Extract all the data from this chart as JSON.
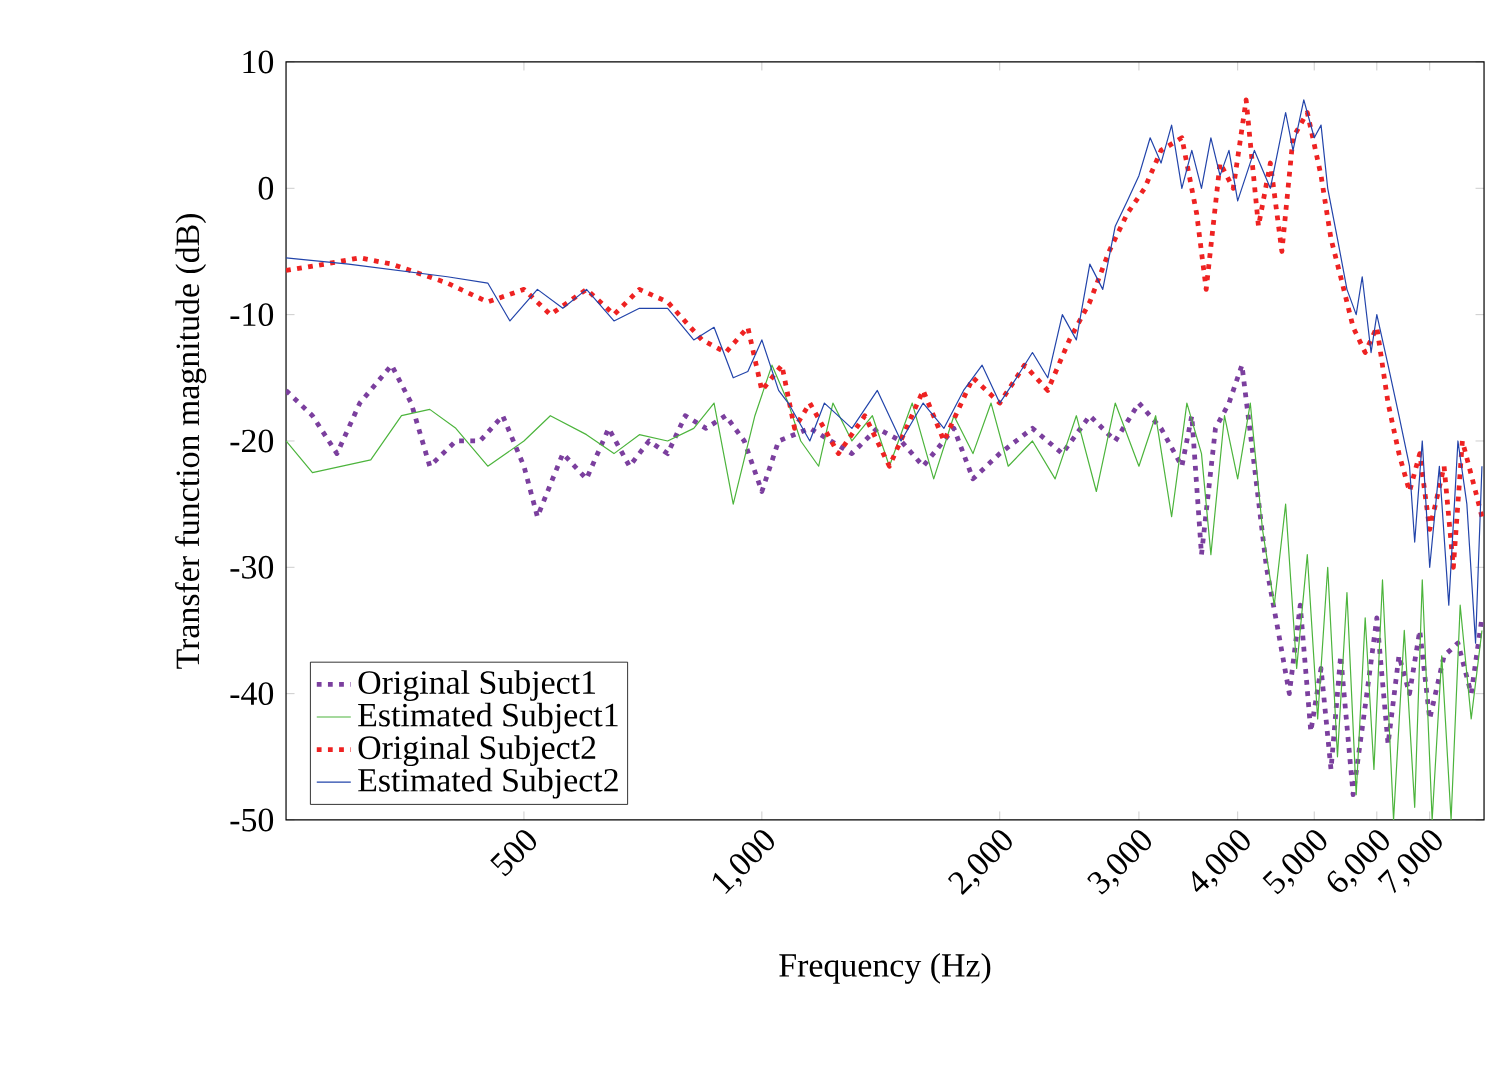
{
  "chart_data": {
    "type": "line",
    "xlabel": "Frequency (Hz)",
    "ylabel": "Transfer function magnitude (dB)",
    "log": "x",
    "xlim": [
      250,
      8200
    ],
    "ylim": [
      -50,
      10
    ],
    "xticks": [
      500,
      {
        "value": 1000,
        "label": "1,000"
      },
      {
        "value": 2000,
        "label": "2,000"
      },
      {
        "value": 3000,
        "label": "3,000"
      },
      {
        "value": 4000,
        "label": "4,000"
      },
      {
        "value": 5000,
        "label": "5,000"
      },
      {
        "value": 6000,
        "label": "6,000"
      },
      {
        "value": 7000,
        "label": "7,000"
      }
    ],
    "yticks": [
      -50,
      -40,
      -30,
      -20,
      -10,
      0,
      10
    ],
    "legend": "bottom left",
    "grid": false,
    "marker": "none",
    "series": [
      {
        "name": "Original Subject1",
        "color": "#7b3f9e",
        "line_style": "dotted",
        "x": [
          250,
          270,
          290,
          310,
          340,
          360,
          380,
          410,
          440,
          470,
          500,
          520,
          560,
          600,
          640,
          680,
          720,
          760,
          800,
          850,
          900,
          950,
          1000,
          1050,
          1150,
          1300,
          1400,
          1500,
          1600,
          1750,
          1850,
          2000,
          2200,
          2400,
          2600,
          2800,
          3000,
          3200,
          3400,
          3500,
          3600,
          3750,
          3900,
          4050,
          4200,
          4350,
          4500,
          4650,
          4800,
          4950,
          5100,
          5250,
          5400,
          5600,
          5800,
          6000,
          6200,
          6400,
          6600,
          6800,
          7000,
          7300,
          7600,
          7900,
          8150
        ],
        "values": [
          -16,
          -18,
          -21,
          -17,
          -14,
          -17,
          -22,
          -20,
          -20,
          -18,
          -22,
          -26,
          -21,
          -23,
          -19,
          -22,
          -20,
          -21,
          -18,
          -19,
          -18,
          -20,
          -24,
          -20,
          -19,
          -21,
          -19,
          -20,
          -22,
          -19,
          -23,
          -21,
          -19,
          -21,
          -18,
          -20,
          -17,
          -19,
          -22,
          -18,
          -29,
          -19,
          -17,
          -14,
          -22,
          -30,
          -35,
          -40,
          -33,
          -43,
          -38,
          -46,
          -37,
          -48,
          -41,
          -34,
          -44,
          -37,
          -40,
          -35,
          -42,
          -37,
          -36,
          -40,
          -34
        ]
      },
      {
        "name": "Estimated Subject1",
        "color": "#4cb43c",
        "line_style": "solid",
        "x": [
          250,
          270,
          320,
          350,
          380,
          410,
          450,
          500,
          540,
          600,
          650,
          700,
          760,
          820,
          870,
          920,
          980,
          1030,
          1080,
          1120,
          1180,
          1230,
          1300,
          1380,
          1450,
          1550,
          1650,
          1750,
          1850,
          1950,
          2050,
          2200,
          2350,
          2500,
          2650,
          2800,
          3000,
          3150,
          3300,
          3450,
          3600,
          3700,
          3850,
          4000,
          4150,
          4300,
          4450,
          4600,
          4750,
          4900,
          5050,
          5200,
          5350,
          5500,
          5650,
          5800,
          5950,
          6100,
          6300,
          6500,
          6700,
          6850,
          7050,
          7250,
          7450,
          7650,
          7900,
          8150
        ],
        "values": [
          -20,
          -22.5,
          -21.5,
          -18,
          -17.5,
          -19,
          -22,
          -20,
          -18,
          -19.5,
          -21,
          -19.5,
          -20,
          -19,
          -17,
          -25,
          -18,
          -14,
          -17,
          -20,
          -22,
          -17,
          -20,
          -18,
          -22,
          -17,
          -23,
          -18,
          -21,
          -17,
          -22,
          -20,
          -23,
          -18,
          -24,
          -17,
          -22,
          -18,
          -26,
          -17,
          -21,
          -29,
          -18,
          -23,
          -17,
          -27,
          -33,
          -25,
          -38,
          -29,
          -42,
          -30,
          -45,
          -32,
          -48,
          -34,
          -46,
          -31,
          -50,
          -35,
          -49,
          -31,
          -50,
          -37,
          -50,
          -33,
          -42,
          -35
        ]
      },
      {
        "name": "Original Subject2",
        "color": "#ee2222",
        "line_style": "dotted",
        "x": [
          250,
          280,
          310,
          340,
          400,
          450,
          500,
          540,
          600,
          650,
          700,
          760,
          840,
          900,
          960,
          1000,
          1060,
          1100,
          1150,
          1250,
          1350,
          1450,
          1600,
          1700,
          1850,
          2000,
          2150,
          2300,
          2450,
          2600,
          2750,
          2900,
          3050,
          3200,
          3400,
          3550,
          3650,
          3800,
          3950,
          4100,
          4250,
          4400,
          4550,
          4700,
          4900,
          5100,
          5250,
          5400,
          5600,
          5800,
          6000,
          6200,
          6400,
          6600,
          6800,
          7000,
          7300,
          7500,
          7700,
          8000,
          8150
        ],
        "values": [
          -6.5,
          -6,
          -5.5,
          -6,
          -7.5,
          -9,
          -8,
          -10,
          -8,
          -10,
          -8,
          -9,
          -12,
          -13,
          -11,
          -16,
          -14,
          -19,
          -17,
          -21,
          -18,
          -22,
          -16,
          -20,
          -15,
          -17,
          -14,
          -16,
          -12,
          -9,
          -5,
          -2,
          0,
          3,
          4,
          -2,
          -8,
          2,
          0,
          7,
          -3,
          2,
          -5,
          4,
          6,
          1,
          -4,
          -7,
          -11,
          -13,
          -11,
          -17,
          -21,
          -24,
          -21,
          -27,
          -22,
          -30,
          -20,
          -24,
          -26
        ]
      },
      {
        "name": "Estimated Subject2",
        "color": "#2244aa",
        "line_style": "solid",
        "x": [
          250,
          300,
          400,
          450,
          480,
          520,
          560,
          600,
          650,
          700,
          760,
          820,
          870,
          920,
          960,
          1000,
          1050,
          1080,
          1150,
          1200,
          1300,
          1400,
          1500,
          1600,
          1700,
          1800,
          1900,
          2000,
          2100,
          2200,
          2300,
          2400,
          2500,
          2600,
          2700,
          2800,
          2900,
          3000,
          3100,
          3200,
          3300,
          3400,
          3500,
          3600,
          3700,
          3800,
          3900,
          4000,
          4200,
          4400,
          4600,
          4700,
          4850,
          5000,
          5100,
          5200,
          5350,
          5500,
          5650,
          5750,
          5900,
          6000,
          6200,
          6400,
          6600,
          6700,
          6850,
          7000,
          7200,
          7400,
          7600,
          7800,
          8000,
          8150
        ],
        "values": [
          -5.5,
          -6,
          -7,
          -7.5,
          -10.5,
          -8,
          -9.5,
          -8,
          -10.5,
          -9.5,
          -9.5,
          -12,
          -11,
          -15,
          -14.5,
          -12,
          -16,
          -17,
          -20,
          -17,
          -19,
          -16,
          -20,
          -17,
          -19,
          -16,
          -14,
          -17,
          -15,
          -13,
          -15,
          -10,
          -12,
          -6,
          -8,
          -3,
          -1,
          1,
          4,
          2,
          5,
          0,
          3,
          0,
          4,
          1,
          3,
          -1,
          3,
          0,
          6,
          3,
          7,
          4,
          5,
          0,
          -4,
          -8,
          -10,
          -7,
          -13,
          -10,
          -14,
          -18,
          -22,
          -28,
          -20,
          -30,
          -22,
          -33,
          -20,
          -25,
          -36,
          -22
        ]
      }
    ]
  }
}
